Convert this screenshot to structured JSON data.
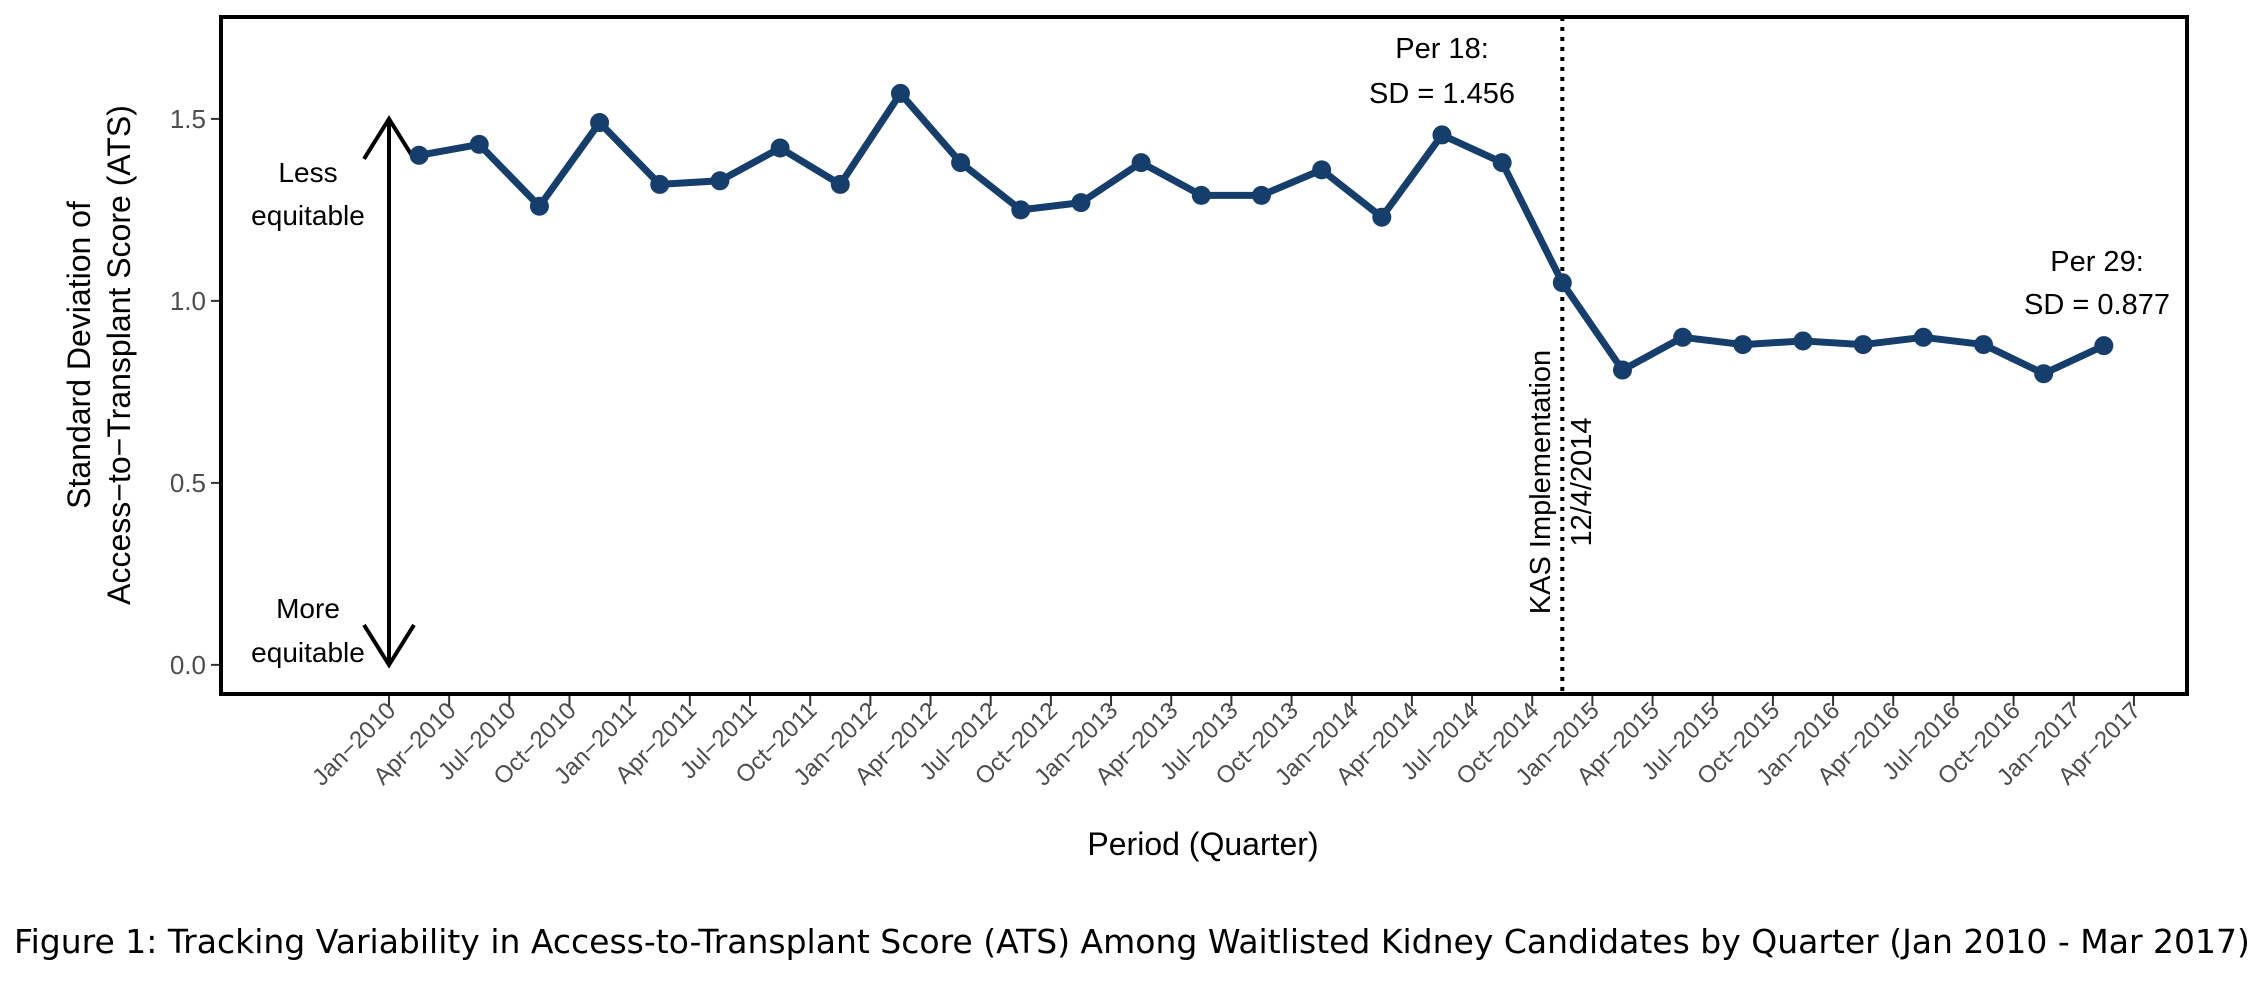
{
  "caption": "Figure 1: Tracking Variability in Access-to-Transplant Score (ATS) Among Waitlisted Kidney Candidates by Quarter (Jan 2010 - Mar 2017)",
  "chart_data": {
    "type": "line",
    "xlabel": "Period (Quarter)",
    "ylabel_lines": [
      "Standard Deviation of",
      "Access−to−Transplant Score (ATS)"
    ],
    "ylim": [
      -0.08,
      1.78
    ],
    "y_ticks": [
      0.0,
      0.5,
      1.0,
      1.5
    ],
    "y_tick_labels": [
      "0.0",
      "0.5",
      "1.0",
      "1.5"
    ],
    "x_tick_labels": [
      "Jan−2010",
      "Apr−2010",
      "Jul−2010",
      "Oct−2010",
      "Jan−2011",
      "Apr−2011",
      "Jul−2011",
      "Oct−2011",
      "Jan−2012",
      "Apr−2012",
      "Jul−2012",
      "Oct−2012",
      "Jan−2013",
      "Apr−2013",
      "Jul−2013",
      "Oct−2013",
      "Jan−2014",
      "Apr−2014",
      "Jul−2014",
      "Oct−2014",
      "Jan−2015",
      "Apr−2015",
      "Jul−2015",
      "Oct−2015",
      "Jan−2016",
      "Apr−2016",
      "Jul−2016",
      "Oct−2016",
      "Jan−2017",
      "Apr−2017"
    ],
    "series": [
      {
        "values": [
          1.4,
          1.43,
          1.26,
          1.49,
          1.32,
          1.33,
          1.42,
          1.32,
          1.57,
          1.38,
          1.25,
          1.27,
          1.38,
          1.29,
          1.29,
          1.36,
          1.23,
          1.456,
          1.38,
          1.05,
          0.81,
          0.9,
          0.88,
          0.89,
          0.88,
          0.9,
          0.88,
          0.8,
          0.877
        ]
      }
    ],
    "line_color": "#153e6c",
    "grid": false,
    "reference_line": {
      "after_tick": "Oct−2014",
      "label_lines": [
        "KAS Implementation",
        "12/4/2014"
      ],
      "style": "dotted"
    },
    "annotations": [
      {
        "lines": [
          "Per 18:",
          "SD = 1.456"
        ],
        "point_index": 17
      },
      {
        "lines": [
          "Per 29:",
          "SD = 0.877"
        ],
        "point_index": 28
      }
    ],
    "equity_arrow": {
      "from": 1.5,
      "to": 0.0,
      "top_label_lines": [
        "Less",
        "equitable"
      ],
      "bottom_label_lines": [
        "More",
        "equitable"
      ]
    }
  }
}
